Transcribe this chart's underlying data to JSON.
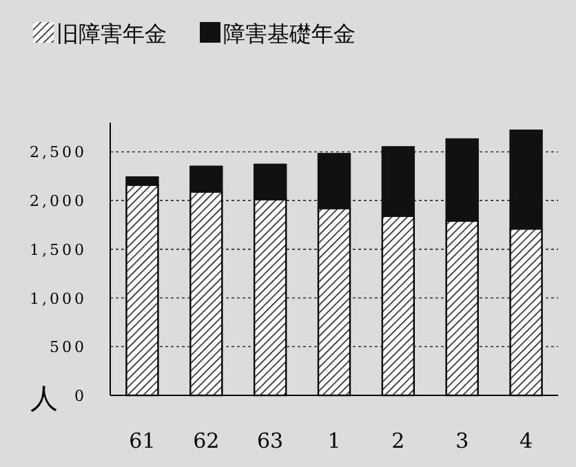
{
  "chart_data": {
    "type": "bar",
    "stacked": true,
    "ylabel": "人",
    "categories": [
      "61",
      "62",
      "63",
      "1",
      "2",
      "3",
      "4"
    ],
    "series": [
      {
        "name": "旧障害年金",
        "color": "#000000",
        "values": [
          2160,
          2090,
          2010,
          1920,
          1840,
          1790,
          1710
        ]
      },
      {
        "name": "障害基礎年金",
        "color": "#111111",
        "values": [
          80,
          260,
          360,
          560,
          710,
          840,
          1010
        ]
      }
    ],
    "ylim": [
      0,
      2800
    ],
    "yticks": [
      0,
      500,
      {
        "value": 1000,
        "label": "1,000"
      },
      {
        "value": 1500,
        "label": "1,500"
      },
      {
        "value": 2000,
        "label": "2,000"
      },
      {
        "value": 2500,
        "label": "2,500"
      }
    ],
    "grid": "y",
    "legend": "top"
  }
}
